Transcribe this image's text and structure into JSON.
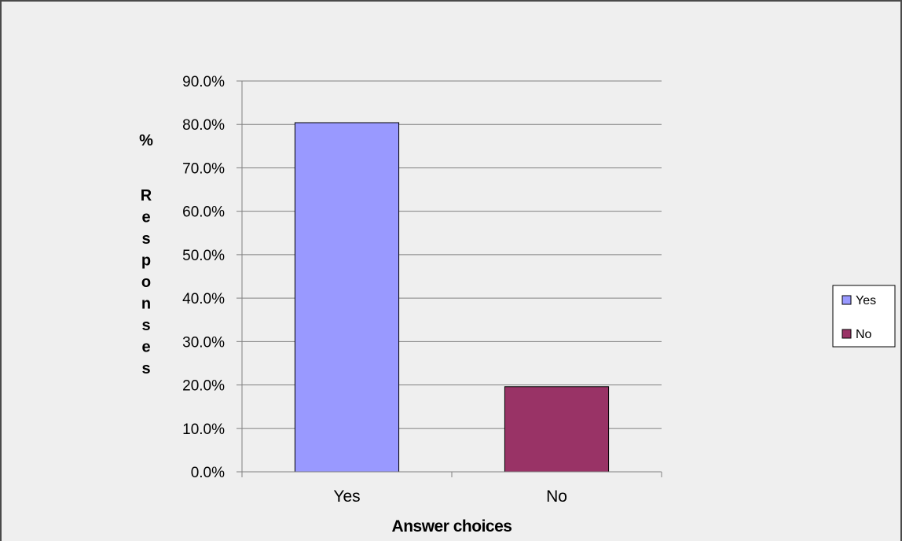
{
  "colors": {
    "chart_area": "#efefef",
    "frame": "#4a4a4a",
    "gridline": "#808080",
    "axis": "#808080",
    "bar_yes": "#9999ff",
    "bar_no": "#993366",
    "bar_border": "#000000"
  },
  "chart_data": {
    "type": "bar",
    "title": "",
    "xlabel": "Answer choices",
    "ylabel": "% Responses",
    "categories": [
      "Yes",
      "No"
    ],
    "values": [
      80.4,
      19.6
    ],
    "value_format": "percent_1dp",
    "ylim": [
      0,
      90
    ],
    "ytick_step": 10,
    "yticks": [
      "0.0%",
      "10.0%",
      "20.0%",
      "30.0%",
      "40.0%",
      "50.0%",
      "60.0%",
      "70.0%",
      "80.0%",
      "90.0%"
    ],
    "grid": true,
    "legend": {
      "placement": "right",
      "entries": [
        {
          "label": "Yes",
          "color": "#9999ff"
        },
        {
          "label": "No",
          "color": "#993366"
        }
      ]
    }
  }
}
